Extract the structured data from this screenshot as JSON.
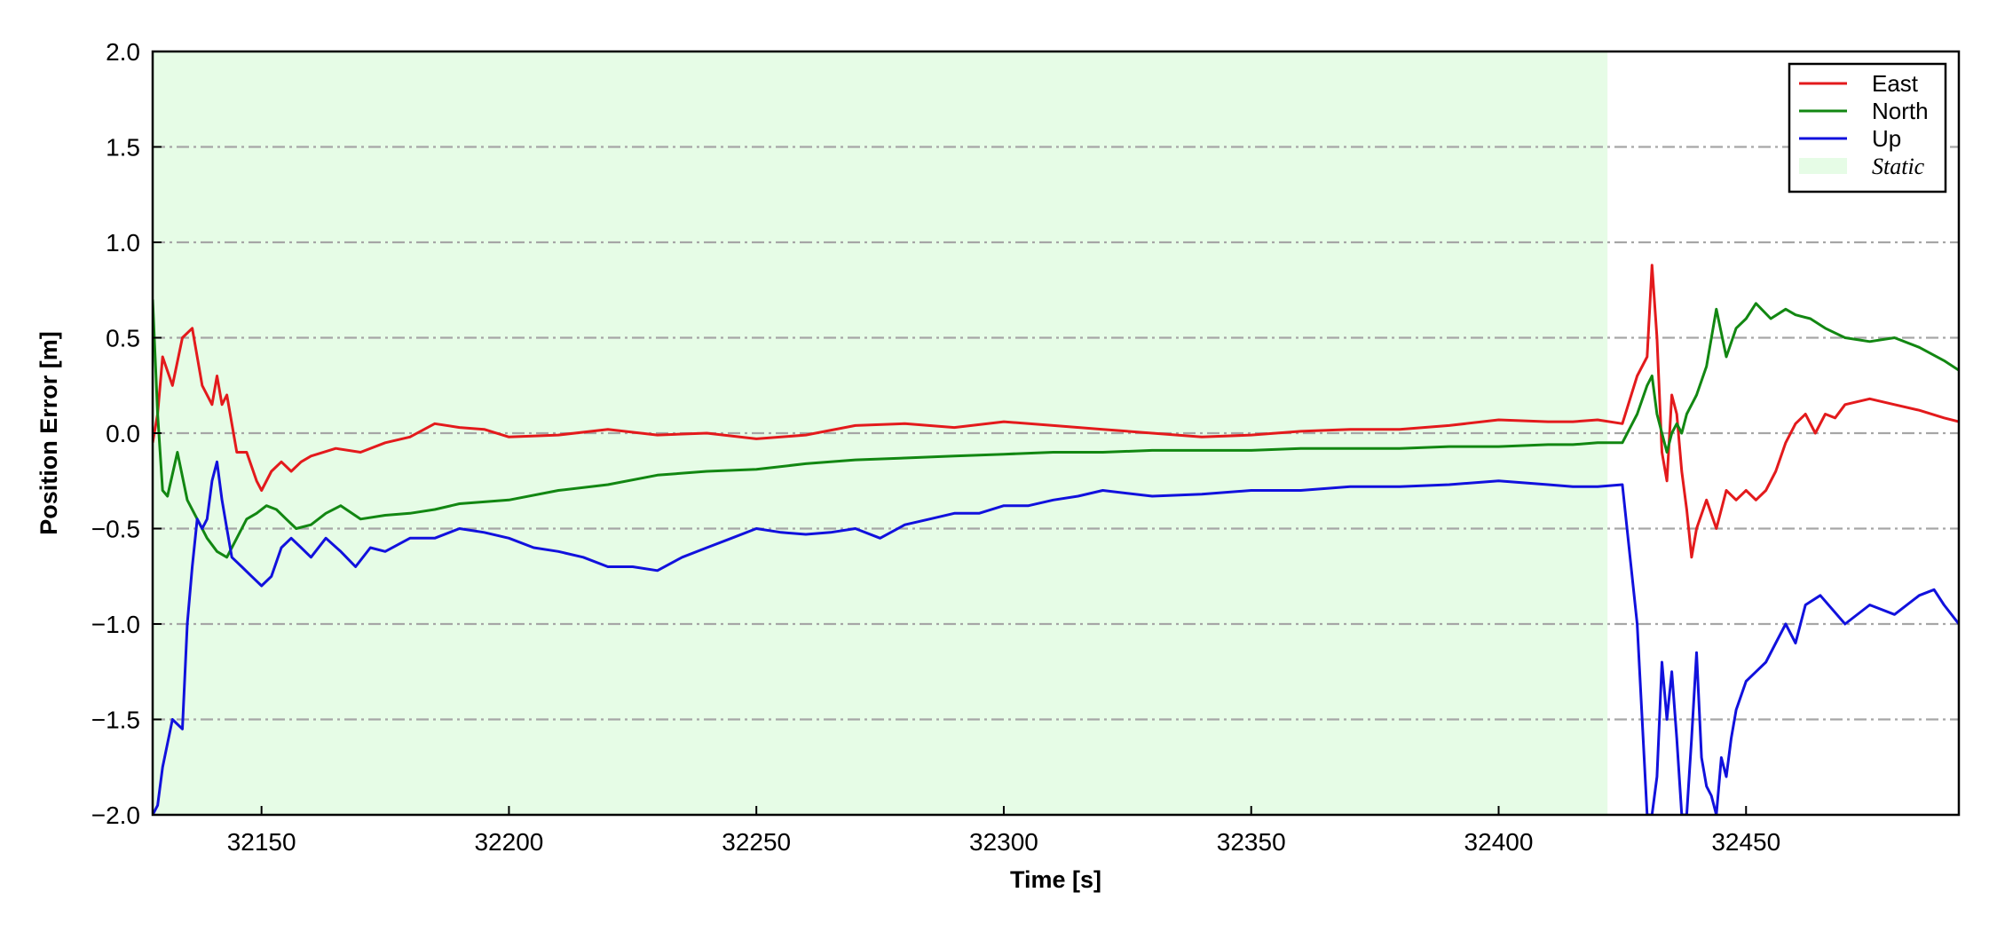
{
  "chart_data": {
    "type": "line",
    "title": "",
    "xlabel": "Time [s]",
    "ylabel": "Position Error [m]",
    "xlim": [
      32128,
      32493
    ],
    "ylim": [
      -2.0,
      2.0
    ],
    "xticks": [
      32150,
      32200,
      32250,
      32300,
      32350,
      32400,
      32450
    ],
    "xtick_labels": [
      "32150",
      "32200",
      "32250",
      "32300",
      "32350",
      "32400",
      "32450"
    ],
    "yticks": [
      2.0,
      1.5,
      1.0,
      0.5,
      0.0,
      -0.5,
      -1.0,
      -1.5,
      -2.0
    ],
    "ytick_labels": [
      "2.0",
      "1.5",
      "1.0",
      "0.5",
      "0.0",
      "−0.5",
      "−1.0",
      "−1.5",
      "−2.0"
    ],
    "grid": "horizontal dash-dot",
    "legend_position": "top-right",
    "static_region": {
      "label": "Static",
      "x_start": 32128,
      "x_end": 32422,
      "color": "#e6fce6"
    },
    "series": [
      {
        "name": "East",
        "color": "#e31a1c",
        "x": [
          32128,
          32129,
          32130,
          32132,
          32134,
          32136,
          32137,
          32138,
          32140,
          32141,
          32142,
          32143,
          32145,
          32147,
          32149,
          32150,
          32152,
          32154,
          32156,
          32158,
          32160,
          32165,
          32170,
          32175,
          32180,
          32185,
          32190,
          32195,
          32200,
          32210,
          32220,
          32230,
          32240,
          32250,
          32260,
          32270,
          32280,
          32290,
          32300,
          32310,
          32320,
          32330,
          32340,
          32350,
          32360,
          32370,
          32380,
          32390,
          32400,
          32410,
          32415,
          32420,
          32425,
          32428,
          32430,
          32431,
          32432,
          32433,
          32434,
          32435,
          32436,
          32437,
          32438,
          32439,
          32440,
          32442,
          32444,
          32446,
          32448,
          32450,
          32452,
          32454,
          32456,
          32458,
          32460,
          32462,
          32464,
          32466,
          32468,
          32470,
          32475,
          32480,
          32485,
          32490,
          32493
        ],
        "y": [
          -0.05,
          0.1,
          0.4,
          0.25,
          0.5,
          0.55,
          0.4,
          0.25,
          0.15,
          0.3,
          0.15,
          0.2,
          -0.1,
          -0.1,
          -0.25,
          -0.3,
          -0.2,
          -0.15,
          -0.2,
          -0.15,
          -0.12,
          -0.08,
          -0.1,
          -0.05,
          -0.02,
          0.05,
          0.03,
          0.02,
          -0.02,
          -0.01,
          0.02,
          -0.01,
          0.0,
          -0.03,
          -0.01,
          0.04,
          0.05,
          0.03,
          0.06,
          0.04,
          0.02,
          0.0,
          -0.02,
          -0.01,
          0.01,
          0.02,
          0.02,
          0.04,
          0.07,
          0.06,
          0.06,
          0.07,
          0.05,
          0.3,
          0.4,
          0.88,
          0.5,
          -0.1,
          -0.25,
          0.2,
          0.1,
          -0.2,
          -0.4,
          -0.65,
          -0.5,
          -0.35,
          -0.5,
          -0.3,
          -0.35,
          -0.3,
          -0.35,
          -0.3,
          -0.2,
          -0.05,
          0.05,
          0.1,
          0.0,
          0.1,
          0.08,
          0.15,
          0.18,
          0.15,
          0.12,
          0.08,
          0.06
        ]
      },
      {
        "name": "North",
        "color": "#128712",
        "x": [
          32128,
          32129,
          32130,
          32131,
          32133,
          32135,
          32137,
          32139,
          32141,
          32143,
          32145,
          32147,
          32149,
          32151,
          32153,
          32155,
          32157,
          32160,
          32163,
          32166,
          32170,
          32175,
          32180,
          32185,
          32190,
          32195,
          32200,
          32210,
          32220,
          32230,
          32240,
          32250,
          32260,
          32270,
          32280,
          32290,
          32300,
          32310,
          32320,
          32330,
          32340,
          32350,
          32360,
          32370,
          32380,
          32390,
          32400,
          32410,
          32415,
          32420,
          32425,
          32428,
          32430,
          32431,
          32432,
          32433,
          32434,
          32435,
          32436,
          32437,
          32438,
          32440,
          32442,
          32444,
          32446,
          32448,
          32450,
          32452,
          32455,
          32458,
          32460,
          32463,
          32466,
          32470,
          32475,
          32480,
          32485,
          32490,
          32493
        ],
        "y": [
          0.7,
          0.1,
          -0.3,
          -0.33,
          -0.1,
          -0.35,
          -0.45,
          -0.55,
          -0.62,
          -0.65,
          -0.55,
          -0.45,
          -0.42,
          -0.38,
          -0.4,
          -0.45,
          -0.5,
          -0.48,
          -0.42,
          -0.38,
          -0.45,
          -0.43,
          -0.42,
          -0.4,
          -0.37,
          -0.36,
          -0.35,
          -0.3,
          -0.27,
          -0.22,
          -0.2,
          -0.19,
          -0.16,
          -0.14,
          -0.13,
          -0.12,
          -0.11,
          -0.1,
          -0.1,
          -0.09,
          -0.09,
          -0.09,
          -0.08,
          -0.08,
          -0.08,
          -0.07,
          -0.07,
          -0.06,
          -0.06,
          -0.05,
          -0.05,
          0.1,
          0.25,
          0.3,
          0.1,
          0.0,
          -0.1,
          0.0,
          0.05,
          0.0,
          0.1,
          0.2,
          0.35,
          0.65,
          0.4,
          0.55,
          0.6,
          0.68,
          0.6,
          0.65,
          0.62,
          0.6,
          0.55,
          0.5,
          0.48,
          0.5,
          0.45,
          0.38,
          0.33
        ]
      },
      {
        "name": "Up",
        "color": "#1111dd",
        "x": [
          32128,
          32129,
          32130,
          32132,
          32134,
          32135,
          32136,
          32137,
          32138,
          32139,
          32140,
          32141,
          32142,
          32143,
          32144,
          32146,
          32148,
          32150,
          32152,
          32154,
          32156,
          32158,
          32160,
          32163,
          32166,
          32169,
          32172,
          32175,
          32180,
          32185,
          32190,
          32195,
          32200,
          32205,
          32210,
          32215,
          32220,
          32225,
          32230,
          32235,
          32240,
          32245,
          32250,
          32255,
          32260,
          32265,
          32270,
          32275,
          32280,
          32285,
          32290,
          32295,
          32300,
          32305,
          32310,
          32315,
          32320,
          32330,
          32340,
          32350,
          32360,
          32370,
          32380,
          32390,
          32400,
          32410,
          32415,
          32420,
          32425,
          32428,
          32430,
          32431,
          32432,
          32433,
          32434,
          32435,
          32436,
          32437,
          32438,
          32439,
          32440,
          32441,
          32442,
          32443,
          32444,
          32445,
          32446,
          32447,
          32448,
          32450,
          32452,
          32454,
          32456,
          32458,
          32460,
          32462,
          32465,
          32470,
          32475,
          32480,
          32485,
          32488,
          32490,
          32493
        ],
        "y": [
          -2.0,
          -1.95,
          -1.75,
          -1.5,
          -1.55,
          -1.0,
          -0.7,
          -0.45,
          -0.5,
          -0.45,
          -0.25,
          -0.15,
          -0.35,
          -0.5,
          -0.65,
          -0.7,
          -0.75,
          -0.8,
          -0.75,
          -0.6,
          -0.55,
          -0.6,
          -0.65,
          -0.55,
          -0.62,
          -0.7,
          -0.6,
          -0.62,
          -0.55,
          -0.55,
          -0.5,
          -0.52,
          -0.55,
          -0.6,
          -0.62,
          -0.65,
          -0.7,
          -0.7,
          -0.72,
          -0.65,
          -0.6,
          -0.55,
          -0.5,
          -0.52,
          -0.53,
          -0.52,
          -0.5,
          -0.55,
          -0.48,
          -0.45,
          -0.42,
          -0.42,
          -0.38,
          -0.38,
          -0.35,
          -0.33,
          -0.3,
          -0.33,
          -0.32,
          -0.3,
          -0.3,
          -0.28,
          -0.28,
          -0.27,
          -0.25,
          -0.27,
          -0.28,
          -0.28,
          -0.27,
          -1.0,
          -2.0,
          -2.0,
          -1.8,
          -1.2,
          -1.5,
          -1.25,
          -1.6,
          -2.0,
          -2.0,
          -1.6,
          -1.15,
          -1.7,
          -1.85,
          -1.9,
          -2.0,
          -1.7,
          -1.8,
          -1.6,
          -1.45,
          -1.3,
          -1.25,
          -1.2,
          -1.1,
          -1.0,
          -1.1,
          -0.9,
          -0.85,
          -1.0,
          -0.9,
          -0.95,
          -0.85,
          -0.82,
          -0.9,
          -1.0
        ]
      }
    ]
  }
}
